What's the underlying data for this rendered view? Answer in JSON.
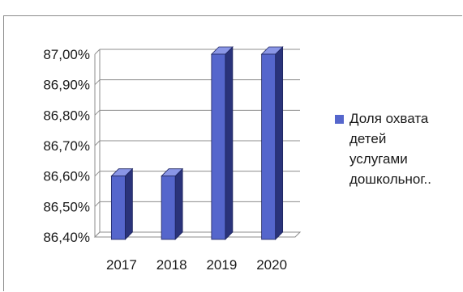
{
  "chart_data": {
    "type": "bar",
    "style": "3d-column",
    "categories": [
      "2017",
      "2018",
      "2019",
      "2020"
    ],
    "series": [
      {
        "name": "Доля охвата детей услугами дошкольног..",
        "values": [
          86.6,
          86.6,
          87.0,
          87.0
        ]
      }
    ],
    "y_ticks": [
      "86,40%",
      "86,50%",
      "86,60%",
      "86,70%",
      "86,80%",
      "86,90%",
      "87,00%"
    ],
    "ylim": [
      86.4,
      87.0
    ],
    "grid": true,
    "legend_position": "right",
    "colors": {
      "bar_front": "#5566cc",
      "bar_side": "#2a337a",
      "bar_top": "#8a96e6",
      "grid": "#8c8c8c"
    }
  },
  "legend": {
    "label": "Доля охвата\nдетей\nуслугами\nдошкольног.."
  }
}
